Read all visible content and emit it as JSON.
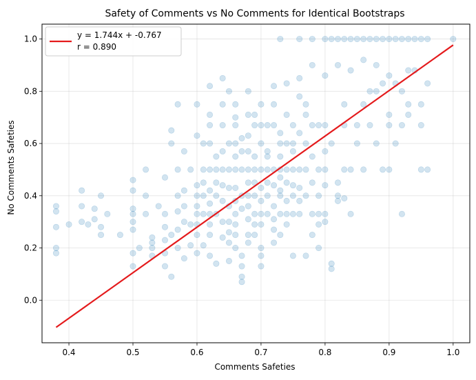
{
  "chart_data": {
    "type": "scatter",
    "title": "Safety of Comments vs No Comments for Identical Bootstraps",
    "xlabel": "Comments Safeties",
    "ylabel": "No Comments Safeties",
    "xlim": [
      0.358,
      1.026
    ],
    "ylim": [
      -0.163,
      1.057
    ],
    "xticks": [
      0.4,
      0.5,
      0.6,
      0.7,
      0.8,
      0.9,
      1.0
    ],
    "xtick_labels": [
      "0.4",
      "0.5",
      "0.6",
      "0.7",
      "0.8",
      "0.9",
      "1.0"
    ],
    "yticks": [
      0.0,
      0.2,
      0.4,
      0.6,
      0.8,
      1.0
    ],
    "ytick_labels": [
      "0.0",
      "0.2",
      "0.4",
      "0.6",
      "0.8",
      "1.0"
    ],
    "grid": true,
    "legend_position": "top-left",
    "series": [
      {
        "kind": "scatter",
        "color": "#1f77b4",
        "points": [
          [
            0.38,
            0.36
          ],
          [
            0.38,
            0.34
          ],
          [
            0.38,
            0.28
          ],
          [
            0.38,
            0.18
          ],
          [
            0.38,
            0.2
          ],
          [
            0.42,
            0.42
          ],
          [
            0.42,
            0.36
          ],
          [
            0.43,
            0.29
          ],
          [
            0.45,
            0.4
          ],
          [
            0.45,
            0.28
          ],
          [
            0.45,
            0.25
          ],
          [
            0.44,
            0.31
          ],
          [
            0.5,
            0.46
          ],
          [
            0.5,
            0.42
          ],
          [
            0.5,
            0.35
          ],
          [
            0.5,
            0.33
          ],
          [
            0.5,
            0.3
          ],
          [
            0.5,
            0.18
          ],
          [
            0.5,
            0.13
          ],
          [
            0.52,
            0.4
          ],
          [
            0.52,
            0.33
          ],
          [
            0.53,
            0.24
          ],
          [
            0.53,
            0.2
          ],
          [
            0.53,
            0.17
          ],
          [
            0.55,
            0.33
          ],
          [
            0.55,
            0.28
          ],
          [
            0.55,
            0.23
          ],
          [
            0.55,
            0.18
          ],
          [
            0.55,
            0.13
          ],
          [
            0.56,
            0.09
          ],
          [
            0.56,
            0.65
          ],
          [
            0.56,
            0.6
          ],
          [
            0.57,
            0.5
          ],
          [
            0.57,
            0.4
          ],
          [
            0.57,
            0.34
          ],
          [
            0.57,
            0.27
          ],
          [
            0.57,
            0.2
          ],
          [
            0.58,
            0.16
          ],
          [
            0.58,
            0.36
          ],
          [
            0.59,
            0.29
          ],
          [
            0.59,
            0.5
          ],
          [
            0.6,
            0.44
          ],
          [
            0.6,
            0.4
          ],
          [
            0.6,
            0.33
          ],
          [
            0.6,
            0.29
          ],
          [
            0.6,
            0.25
          ],
          [
            0.6,
            0.18
          ],
          [
            0.61,
            0.5
          ],
          [
            0.61,
            0.45
          ],
          [
            0.61,
            0.4
          ],
          [
            0.61,
            0.33
          ],
          [
            0.62,
            0.67
          ],
          [
            0.62,
            0.6
          ],
          [
            0.62,
            0.5
          ],
          [
            0.62,
            0.42
          ],
          [
            0.62,
            0.37
          ],
          [
            0.62,
            0.33
          ],
          [
            0.62,
            0.29
          ],
          [
            0.62,
            0.25
          ],
          [
            0.62,
            0.17
          ],
          [
            0.63,
            0.14
          ],
          [
            0.63,
            0.5
          ],
          [
            0.63,
            0.4
          ],
          [
            0.63,
            0.33
          ],
          [
            0.64,
            0.67
          ],
          [
            0.64,
            0.57
          ],
          [
            0.64,
            0.5
          ],
          [
            0.64,
            0.44
          ],
          [
            0.64,
            0.38
          ],
          [
            0.64,
            0.3
          ],
          [
            0.64,
            0.24
          ],
          [
            0.65,
            0.8
          ],
          [
            0.65,
            0.6
          ],
          [
            0.65,
            0.5
          ],
          [
            0.65,
            0.43
          ],
          [
            0.65,
            0.36
          ],
          [
            0.65,
            0.3
          ],
          [
            0.65,
            0.22
          ],
          [
            0.65,
            0.15
          ],
          [
            0.66,
            0.75
          ],
          [
            0.66,
            0.67
          ],
          [
            0.66,
            0.6
          ],
          [
            0.66,
            0.5
          ],
          [
            0.66,
            0.43
          ],
          [
            0.66,
            0.38
          ],
          [
            0.66,
            0.33
          ],
          [
            0.66,
            0.29
          ],
          [
            0.66,
            0.25
          ],
          [
            0.66,
            0.2
          ],
          [
            0.67,
            0.17
          ],
          [
            0.67,
            0.13
          ],
          [
            0.67,
            0.09
          ],
          [
            0.67,
            0.07
          ],
          [
            0.67,
            0.57
          ],
          [
            0.67,
            0.5
          ],
          [
            0.67,
            0.4
          ],
          [
            0.68,
            0.71
          ],
          [
            0.68,
            0.63
          ],
          [
            0.68,
            0.57
          ],
          [
            0.68,
            0.5
          ],
          [
            0.68,
            0.45
          ],
          [
            0.68,
            0.4
          ],
          [
            0.68,
            0.36
          ],
          [
            0.68,
            0.31
          ],
          [
            0.68,
            0.25
          ],
          [
            0.68,
            0.22
          ],
          [
            0.69,
            0.67
          ],
          [
            0.69,
            0.55
          ],
          [
            0.69,
            0.5
          ],
          [
            0.69,
            0.4
          ],
          [
            0.69,
            0.33
          ],
          [
            0.69,
            0.29
          ],
          [
            0.69,
            0.25
          ],
          [
            0.7,
            0.6
          ],
          [
            0.7,
            0.5
          ],
          [
            0.7,
            0.43
          ],
          [
            0.7,
            0.38
          ],
          [
            0.7,
            0.33
          ],
          [
            0.7,
            0.29
          ],
          [
            0.7,
            0.2
          ],
          [
            0.7,
            0.17
          ],
          [
            0.7,
            0.13
          ],
          [
            0.71,
            0.57
          ],
          [
            0.71,
            0.5
          ],
          [
            0.71,
            0.45
          ],
          [
            0.71,
            0.4
          ],
          [
            0.71,
            0.33
          ],
          [
            0.72,
            0.75
          ],
          [
            0.72,
            0.67
          ],
          [
            0.72,
            0.5
          ],
          [
            0.72,
            0.44
          ],
          [
            0.72,
            0.36
          ],
          [
            0.72,
            0.31
          ],
          [
            0.72,
            0.27
          ],
          [
            0.73,
            0.6
          ],
          [
            0.73,
            0.55
          ],
          [
            0.73,
            0.5
          ],
          [
            0.73,
            0.47
          ],
          [
            0.73,
            0.42
          ],
          [
            0.73,
            0.4
          ],
          [
            0.73,
            0.33
          ],
          [
            0.73,
            0.25
          ],
          [
            0.74,
            0.71
          ],
          [
            0.74,
            0.6
          ],
          [
            0.74,
            0.5
          ],
          [
            0.74,
            0.38
          ],
          [
            0.74,
            0.33
          ],
          [
            0.74,
            0.29
          ],
          [
            0.75,
            0.67
          ],
          [
            0.75,
            0.57
          ],
          [
            0.75,
            0.5
          ],
          [
            0.75,
            0.44
          ],
          [
            0.75,
            0.4
          ],
          [
            0.75,
            0.33
          ],
          [
            0.75,
            0.17
          ],
          [
            0.76,
            0.78
          ],
          [
            0.76,
            0.64
          ],
          [
            0.76,
            0.5
          ],
          [
            0.76,
            0.43
          ],
          [
            0.76,
            0.33
          ],
          [
            0.77,
            0.71
          ],
          [
            0.77,
            0.6
          ],
          [
            0.77,
            0.5
          ],
          [
            0.77,
            0.17
          ],
          [
            0.78,
            0.67
          ],
          [
            0.78,
            0.55
          ],
          [
            0.78,
            0.45
          ],
          [
            0.78,
            0.33
          ],
          [
            0.79,
            0.5
          ],
          [
            0.79,
            0.4
          ],
          [
            0.79,
            0.33
          ],
          [
            0.79,
            0.29
          ],
          [
            0.79,
            0.2
          ],
          [
            0.8,
            0.67
          ],
          [
            0.8,
            0.57
          ],
          [
            0.8,
            0.5
          ],
          [
            0.8,
            0.44
          ],
          [
            0.8,
            0.33
          ],
          [
            0.81,
            0.14
          ],
          [
            0.81,
            0.12
          ],
          [
            0.82,
            0.4
          ],
          [
            0.82,
            0.38
          ],
          [
            0.83,
            0.67
          ],
          [
            0.83,
            0.5
          ],
          [
            0.83,
            0.39
          ],
          [
            0.84,
            0.5
          ],
          [
            0.84,
            0.33
          ],
          [
            0.86,
            0.5
          ],
          [
            0.87,
            0.67
          ],
          [
            0.88,
            0.8
          ],
          [
            0.88,
            0.6
          ],
          [
            0.9,
            0.71
          ],
          [
            0.9,
            0.5
          ],
          [
            0.92,
            0.67
          ],
          [
            0.92,
            0.33
          ],
          [
            0.93,
            0.88
          ],
          [
            0.93,
            0.75
          ],
          [
            0.95,
            0.5
          ],
          [
            0.96,
            0.5
          ],
          [
            0.53,
            0.22
          ],
          [
            0.58,
            0.42
          ],
          [
            0.59,
            0.21
          ],
          [
            0.61,
            0.21
          ],
          [
            0.63,
            0.45
          ],
          [
            0.65,
            0.26
          ],
          [
            0.67,
            0.35
          ],
          [
            0.69,
            0.45
          ],
          [
            0.71,
            0.55
          ],
          [
            0.72,
            0.22
          ],
          [
            0.74,
            0.45
          ],
          [
            0.76,
            0.38
          ],
          [
            0.77,
            0.4
          ],
          [
            0.78,
            0.25
          ],
          [
            0.8,
            0.3
          ],
          [
            0.82,
            0.45
          ],
          [
            0.85,
            0.6
          ],
          [
            0.86,
            0.75
          ],
          [
            0.89,
            0.83
          ],
          [
            0.9,
            0.67
          ],
          [
            0.91,
            0.83
          ],
          [
            0.92,
            0.8
          ],
          [
            0.94,
            0.88
          ],
          [
            0.95,
            0.75
          ],
          [
            0.96,
            0.83
          ],
          [
            0.6,
            0.75
          ],
          [
            0.62,
            0.82
          ],
          [
            0.64,
            0.85
          ],
          [
            0.66,
            0.7
          ],
          [
            0.68,
            0.8
          ],
          [
            0.7,
            0.75
          ],
          [
            0.72,
            0.82
          ],
          [
            0.74,
            0.83
          ],
          [
            0.76,
            0.85
          ],
          [
            0.78,
            0.9
          ],
          [
            0.8,
            0.86
          ],
          [
            0.82,
            0.9
          ],
          [
            0.84,
            0.88
          ],
          [
            0.86,
            0.92
          ],
          [
            0.88,
            0.9
          ],
          [
            0.9,
            0.86
          ],
          [
            0.73,
            1.0
          ],
          [
            0.76,
            1.0
          ],
          [
            0.78,
            1.0
          ],
          [
            0.8,
            1.0
          ],
          [
            0.81,
            1.0
          ],
          [
            0.82,
            1.0
          ],
          [
            0.83,
            1.0
          ],
          [
            0.84,
            1.0
          ],
          [
            0.85,
            1.0
          ],
          [
            0.86,
            1.0
          ],
          [
            0.87,
            1.0
          ],
          [
            0.88,
            1.0
          ],
          [
            0.89,
            1.0
          ],
          [
            0.9,
            1.0
          ],
          [
            0.91,
            1.0
          ],
          [
            0.92,
            1.0
          ],
          [
            0.93,
            1.0
          ],
          [
            0.94,
            1.0
          ],
          [
            0.95,
            1.0
          ],
          [
            0.96,
            1.0
          ],
          [
            1.0,
            1.0
          ],
          [
            0.55,
            0.47
          ],
          [
            0.57,
            0.75
          ],
          [
            0.58,
            0.57
          ],
          [
            0.6,
            0.63
          ],
          [
            0.61,
            0.6
          ],
          [
            0.62,
            0.71
          ],
          [
            0.63,
            0.55
          ],
          [
            0.64,
            0.75
          ],
          [
            0.66,
            0.55
          ],
          [
            0.67,
            0.62
          ],
          [
            0.69,
            0.71
          ],
          [
            0.7,
            0.67
          ],
          [
            0.71,
            0.67
          ],
          [
            0.73,
            0.64
          ],
          [
            0.75,
            0.6
          ],
          [
            0.77,
            0.75
          ],
          [
            0.79,
            0.67
          ],
          [
            0.81,
            0.6
          ],
          [
            0.83,
            0.75
          ],
          [
            0.85,
            0.67
          ],
          [
            0.87,
            0.8
          ],
          [
            0.89,
            0.5
          ],
          [
            0.91,
            0.6
          ],
          [
            0.93,
            0.71
          ],
          [
            0.95,
            0.67
          ],
          [
            0.5,
            0.27
          ],
          [
            0.52,
            0.5
          ],
          [
            0.54,
            0.36
          ],
          [
            0.56,
            0.25
          ],
          [
            0.58,
            0.3
          ],
          [
            0.6,
            0.36
          ],
          [
            0.42,
            0.3
          ],
          [
            0.44,
            0.35
          ],
          [
            0.4,
            0.29
          ],
          [
            0.46,
            0.33
          ],
          [
            0.48,
            0.25
          ],
          [
            0.51,
            0.2
          ]
        ]
      },
      {
        "kind": "line",
        "name": "y = 1.744x + -0.767\nr = 0.890",
        "color": "#e41a1c",
        "x": [
          0.38,
          1.0
        ],
        "y": [
          -0.104,
          0.977
        ]
      }
    ],
    "legend_lines": [
      "y = 1.744x + -0.767",
      "r = 0.890"
    ]
  }
}
